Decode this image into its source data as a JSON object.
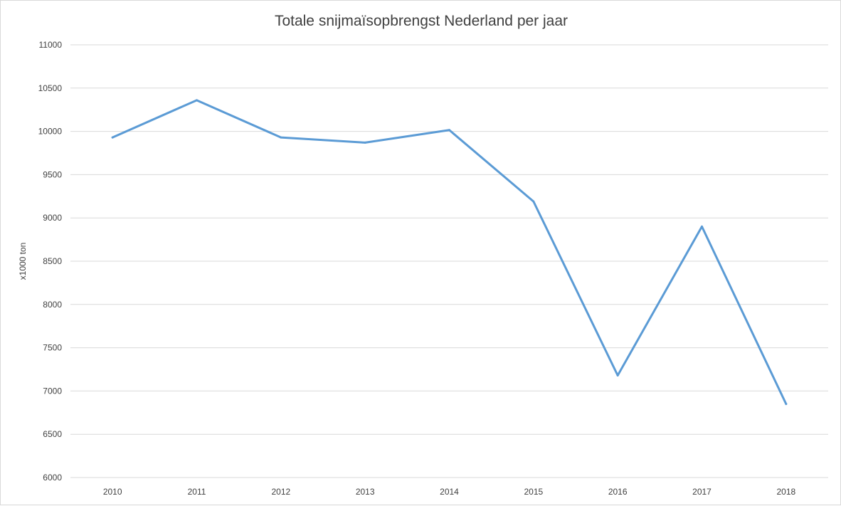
{
  "chart_data": {
    "type": "line",
    "title": "Totale snijmaïsopbrengst Nederland per jaar",
    "xlabel": "",
    "ylabel": "x1000 ton",
    "categories": [
      "2010",
      "2011",
      "2012",
      "2013",
      "2014",
      "2015",
      "2016",
      "2017",
      "2018"
    ],
    "series": [
      {
        "values": [
          9930,
          10360,
          9930,
          9870,
          10015,
          9190,
          7180,
          8900,
          6850
        ]
      }
    ],
    "ylim": [
      6000,
      11000
    ],
    "yticks": [
      "6000",
      "6500",
      "7000",
      "7500",
      "8000",
      "8500",
      "9000",
      "9500",
      "10000",
      "10500",
      "11000"
    ],
    "grid": true,
    "legend": "none",
    "colors": {
      "line": "#5b9bd5",
      "grid": "#d9d9d9",
      "text": "#404040"
    }
  }
}
